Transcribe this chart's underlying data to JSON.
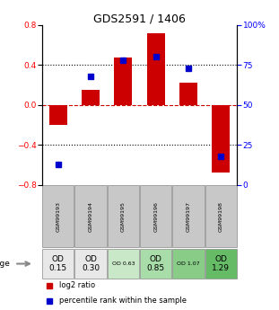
{
  "title": "GDS2591 / 1406",
  "samples": [
    "GSM99193",
    "GSM99194",
    "GSM99195",
    "GSM99196",
    "GSM99197",
    "GSM99198"
  ],
  "log2_ratio": [
    -0.2,
    0.15,
    0.47,
    0.72,
    0.22,
    -0.68
  ],
  "percentile_rank": [
    13,
    68,
    78,
    80,
    73,
    18
  ],
  "age_labels": [
    "OD\n0.15",
    "OD\n0.30",
    "OD 0.63",
    "OD\n0.85",
    "OD 1.07",
    "OD\n1.29"
  ],
  "age_bg_colors": [
    "#e8e8e8",
    "#e8e8e8",
    "#c8e8c8",
    "#a8dca8",
    "#88cc88",
    "#66bb66"
  ],
  "age_fontsize_large": [
    true,
    true,
    false,
    true,
    false,
    true
  ],
  "ylim": [
    -0.8,
    0.8
  ],
  "yticks_left": [
    -0.8,
    -0.4,
    0.0,
    0.4,
    0.8
  ],
  "bar_color_red": "#cc0000",
  "bar_color_blue": "#0000cc",
  "bg_color": "#ffffff",
  "gsm_bg": "#c8c8c8",
  "bar_width": 0.55
}
